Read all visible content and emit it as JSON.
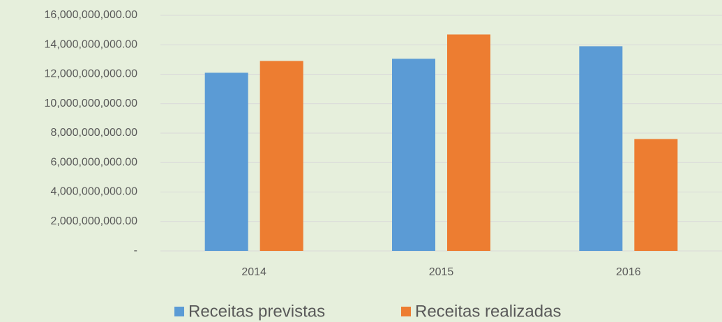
{
  "chart_data": {
    "type": "bar",
    "categories": [
      "2014",
      "2015",
      "2016"
    ],
    "series": [
      {
        "name": "Receitas previstas",
        "color": "#5b9bd5",
        "values": [
          12100000000,
          13050000000,
          13900000000
        ]
      },
      {
        "name": "Receitas realizadas",
        "color": "#ed7d31",
        "values": [
          12900000000,
          14700000000,
          7600000000
        ]
      }
    ],
    "ylim": [
      0,
      16000000000
    ],
    "yticks": [
      {
        "value": 0,
        "label": "-"
      },
      {
        "value": 2000000000,
        "label": "2,000,000,000.00"
      },
      {
        "value": 4000000000,
        "label": "4,000,000,000.00"
      },
      {
        "value": 6000000000,
        "label": "6,000,000,000.00"
      },
      {
        "value": 8000000000,
        "label": "8,000,000,000.00"
      },
      {
        "value": 10000000000,
        "label": "10,000,000,000.00"
      },
      {
        "value": 12000000000,
        "label": "12,000,000,000.00"
      },
      {
        "value": 14000000000,
        "label": "14,000,000,000.00"
      },
      {
        "value": 16000000000,
        "label": "16,000,000,000.00"
      }
    ],
    "grid": true,
    "legend": "bottom"
  }
}
